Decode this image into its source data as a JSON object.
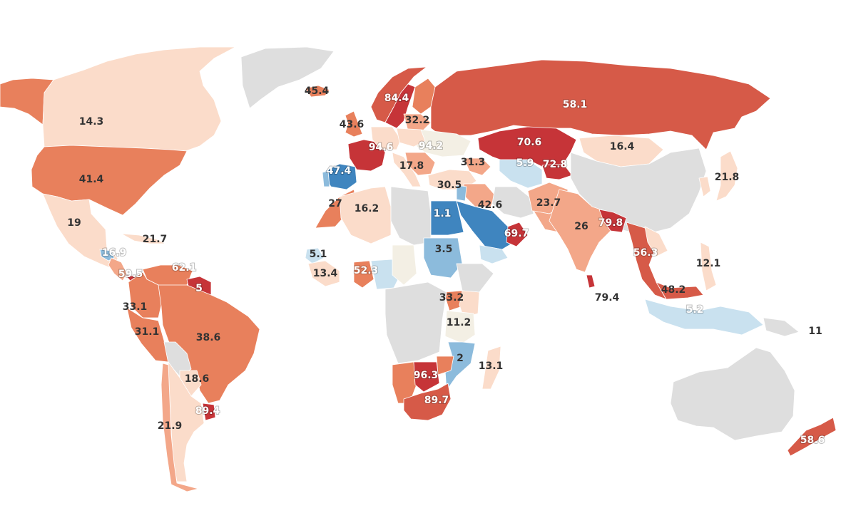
{
  "map": {
    "type": "choropleth-world",
    "colors": {
      "no_data": "#dedede",
      "blue_dark": "#3f85bf",
      "blue_mid": "#8cbbdc",
      "blue_light": "#c9e1ef",
      "neutral": "#f3efe4",
      "peach": "#fbdcca",
      "salmon_light": "#f3a789",
      "salmon": "#e8805c",
      "red": "#d65a48",
      "red_dark": "#c63438"
    },
    "regions": [
      {
        "key": "alaska",
        "value": null,
        "color": "salmon"
      },
      {
        "key": "canada",
        "value": "14.3",
        "color": "peach"
      },
      {
        "key": "greenland",
        "value": null,
        "color": "no_data"
      },
      {
        "key": "usa",
        "value": "41.4",
        "color": "salmon"
      },
      {
        "key": "mexico",
        "value": "19",
        "color": "peach"
      },
      {
        "key": "cuba",
        "value": "21.7",
        "color": "peach"
      },
      {
        "key": "guatemala",
        "value": "16.9",
        "color": "blue_mid"
      },
      {
        "key": "nicaragua",
        "value": "59.5",
        "color": "salmon_light"
      },
      {
        "key": "panama",
        "value": null,
        "color": "red_dark"
      },
      {
        "key": "venezuela",
        "value": "62.1",
        "color": "salmon"
      },
      {
        "key": "guiana",
        "value": "5",
        "color": "red_dark"
      },
      {
        "key": "colombia",
        "value": "33.1",
        "color": "salmon"
      },
      {
        "key": "peru",
        "value": "31.1",
        "color": "salmon"
      },
      {
        "key": "brazil",
        "value": "38.6",
        "color": "salmon"
      },
      {
        "key": "bolivia",
        "value": null,
        "color": "no_data"
      },
      {
        "key": "paraguay",
        "value": "18.6",
        "color": "peach"
      },
      {
        "key": "uruguay",
        "value": "89.4",
        "color": "red_dark"
      },
      {
        "key": "argentina",
        "value": "21.9",
        "color": "peach"
      },
      {
        "key": "chile",
        "value": null,
        "color": "salmon_light"
      },
      {
        "key": "iceland",
        "value": "45.4",
        "color": "salmon"
      },
      {
        "key": "uk",
        "value": "43.6",
        "color": "salmon"
      },
      {
        "key": "norway",
        "value": null,
        "color": "red"
      },
      {
        "key": "sweden",
        "value": "84.4",
        "color": "red_dark"
      },
      {
        "key": "finland",
        "value": null,
        "color": "salmon"
      },
      {
        "key": "baltics",
        "value": "32.2",
        "color": "salmon_light"
      },
      {
        "key": "russia",
        "value": "58.1",
        "color": "red"
      },
      {
        "key": "france",
        "value": "94.6",
        "color": "red_dark"
      },
      {
        "key": "germany",
        "value": null,
        "color": "peach"
      },
      {
        "key": "ukraine",
        "value": "94.2",
        "color": "neutral"
      },
      {
        "key": "poland",
        "value": null,
        "color": "peach"
      },
      {
        "key": "spain",
        "value": "47.4",
        "color": "blue_dark"
      },
      {
        "key": "portugal",
        "value": null,
        "color": "blue_mid"
      },
      {
        "key": "italy",
        "value": "17.8",
        "color": "peach"
      },
      {
        "key": "balkans",
        "value": null,
        "color": "salmon_light"
      },
      {
        "key": "turkey",
        "value": "30.5",
        "color": "peach"
      },
      {
        "key": "georgia",
        "value": "31.3",
        "color": "salmon_light"
      },
      {
        "key": "kazakhstan",
        "value": "70.6",
        "color": "red_dark"
      },
      {
        "key": "uzbekistan",
        "value": "5.9",
        "color": "blue_light"
      },
      {
        "key": "kyrgyzstan",
        "value": "72.8",
        "color": "red_dark"
      },
      {
        "key": "mongolia",
        "value": "16.4",
        "color": "peach"
      },
      {
        "key": "china",
        "value": null,
        "color": "no_data"
      },
      {
        "key": "japan",
        "value": "21.8",
        "color": "peach"
      },
      {
        "key": "korea",
        "value": null,
        "color": "peach"
      },
      {
        "key": "morocco",
        "value": "27",
        "color": "salmon"
      },
      {
        "key": "algeria",
        "value": "16.2",
        "color": "peach"
      },
      {
        "key": "libya",
        "value": null,
        "color": "no_data"
      },
      {
        "key": "egypt",
        "value": "1.1",
        "color": "blue_dark"
      },
      {
        "key": "syria_iraq",
        "value": null,
        "color": "salmon_light"
      },
      {
        "key": "iran",
        "value": "42.6",
        "color": "no_data"
      },
      {
        "key": "jordan",
        "value": null,
        "color": "blue_mid"
      },
      {
        "key": "saudi_arabia",
        "value": null,
        "color": "blue_dark"
      },
      {
        "key": "oman_uae",
        "value": "69.7",
        "color": "red_dark"
      },
      {
        "key": "yemen",
        "value": null,
        "color": "blue_light"
      },
      {
        "key": "afghanistan",
        "value": "23.7",
        "color": "salmon_light"
      },
      {
        "key": "pakistan",
        "value": null,
        "color": "salmon_light"
      },
      {
        "key": "india",
        "value": "26",
        "color": "salmon_light"
      },
      {
        "key": "nepal_bangladesh",
        "value": "79.8",
        "color": "red_dark"
      },
      {
        "key": "sri_lanka",
        "value": "79.4",
        "color": "red_dark"
      },
      {
        "key": "myanmar_thailand",
        "value": "56.3",
        "color": "red"
      },
      {
        "key": "laos",
        "value": null,
        "color": "peach"
      },
      {
        "key": "malaysia",
        "value": "48.2",
        "color": "red"
      },
      {
        "key": "philippines",
        "value": "12.1",
        "color": "peach"
      },
      {
        "key": "indonesia",
        "value": "5.2",
        "color": "blue_light"
      },
      {
        "key": "png",
        "value": "11",
        "color": "no_data"
      },
      {
        "key": "australia",
        "value": null,
        "color": "no_data"
      },
      {
        "key": "new_zealand",
        "value": "58.6",
        "color": "red"
      },
      {
        "key": "senegal",
        "value": "5.1",
        "color": "blue_light"
      },
      {
        "key": "guinea",
        "value": "13.4",
        "color": "peach"
      },
      {
        "key": "ghana",
        "value": "52.3",
        "color": "salmon"
      },
      {
        "key": "nigeria",
        "value": null,
        "color": "blue_light"
      },
      {
        "key": "chad",
        "value": null,
        "color": "neutral"
      },
      {
        "key": "sudan",
        "value": "3.5",
        "color": "blue_mid"
      },
      {
        "key": "ethiopia",
        "value": null,
        "color": "no_data"
      },
      {
        "key": "uganda",
        "value": "33.2",
        "color": "salmon"
      },
      {
        "key": "kenya",
        "value": null,
        "color": "peach"
      },
      {
        "key": "tanzania",
        "value": "11.2",
        "color": "neutral"
      },
      {
        "key": "mozambique",
        "value": "2",
        "color": "blue_mid"
      },
      {
        "key": "madagascar",
        "value": "13.1",
        "color": "peach"
      },
      {
        "key": "namibia",
        "value": null,
        "color": "salmon"
      },
      {
        "key": "botswana",
        "value": "96.3",
        "color": "red_dark"
      },
      {
        "key": "zimbabwe",
        "value": null,
        "color": "salmon"
      },
      {
        "key": "south_africa",
        "value": "89.7",
        "color": "red"
      },
      {
        "key": "central_africa",
        "value": null,
        "color": "no_data"
      }
    ],
    "labels": [
      {
        "key": "canada",
        "text": "14.3"
      },
      {
        "key": "usa",
        "text": "41.4"
      },
      {
        "key": "mexico",
        "text": "19"
      },
      {
        "key": "cuba",
        "text": "21.7"
      },
      {
        "key": "guatemala",
        "text": "16.9"
      },
      {
        "key": "nicaragua",
        "text": "59.5"
      },
      {
        "key": "venezuela",
        "text": "62.1"
      },
      {
        "key": "guiana",
        "text": "5"
      },
      {
        "key": "colombia",
        "text": "33.1"
      },
      {
        "key": "peru",
        "text": "31.1"
      },
      {
        "key": "brazil",
        "text": "38.6"
      },
      {
        "key": "paraguay",
        "text": "18.6"
      },
      {
        "key": "uruguay",
        "text": "89.4"
      },
      {
        "key": "argentina",
        "text": "21.9"
      },
      {
        "key": "iceland",
        "text": "45.4"
      },
      {
        "key": "uk",
        "text": "43.6"
      },
      {
        "key": "sweden",
        "text": "84.4"
      },
      {
        "key": "baltics",
        "text": "32.2"
      },
      {
        "key": "russia",
        "text": "58.1"
      },
      {
        "key": "france",
        "text": "94.6"
      },
      {
        "key": "ukraine",
        "text": "94.2"
      },
      {
        "key": "spain",
        "text": "47.4"
      },
      {
        "key": "italy",
        "text": "17.8"
      },
      {
        "key": "turkey",
        "text": "30.5"
      },
      {
        "key": "georgia",
        "text": "31.3"
      },
      {
        "key": "kazakhstan",
        "text": "70.6"
      },
      {
        "key": "uzbekistan",
        "text": "5.9"
      },
      {
        "key": "kyrgyzstan",
        "text": "72.8"
      },
      {
        "key": "mongolia",
        "text": "16.4"
      },
      {
        "key": "japan",
        "text": "21.8"
      },
      {
        "key": "morocco",
        "text": "27"
      },
      {
        "key": "algeria",
        "text": "16.2"
      },
      {
        "key": "egypt",
        "text": "1.1"
      },
      {
        "key": "iran",
        "text": "42.6"
      },
      {
        "key": "oman_uae",
        "text": "69.7"
      },
      {
        "key": "afghanistan",
        "text": "23.7"
      },
      {
        "key": "india",
        "text": "26"
      },
      {
        "key": "nepal_bangladesh",
        "text": "79.8"
      },
      {
        "key": "sri_lanka",
        "text": "79.4"
      },
      {
        "key": "myanmar_thailand",
        "text": "56.3"
      },
      {
        "key": "malaysia",
        "text": "48.2"
      },
      {
        "key": "philippines",
        "text": "12.1"
      },
      {
        "key": "indonesia",
        "text": "5.2"
      },
      {
        "key": "png",
        "text": "11"
      },
      {
        "key": "new_zealand",
        "text": "58.6"
      },
      {
        "key": "senegal",
        "text": "5.1"
      },
      {
        "key": "guinea",
        "text": "13.4"
      },
      {
        "key": "ghana",
        "text": "52.3"
      },
      {
        "key": "sudan",
        "text": "3.5"
      },
      {
        "key": "uganda",
        "text": "33.2"
      },
      {
        "key": "tanzania",
        "text": "11.2"
      },
      {
        "key": "mozambique",
        "text": "2"
      },
      {
        "key": "madagascar",
        "text": "13.1"
      },
      {
        "key": "botswana",
        "text": "96.3"
      },
      {
        "key": "south_africa",
        "text": "89.7"
      }
    ]
  }
}
